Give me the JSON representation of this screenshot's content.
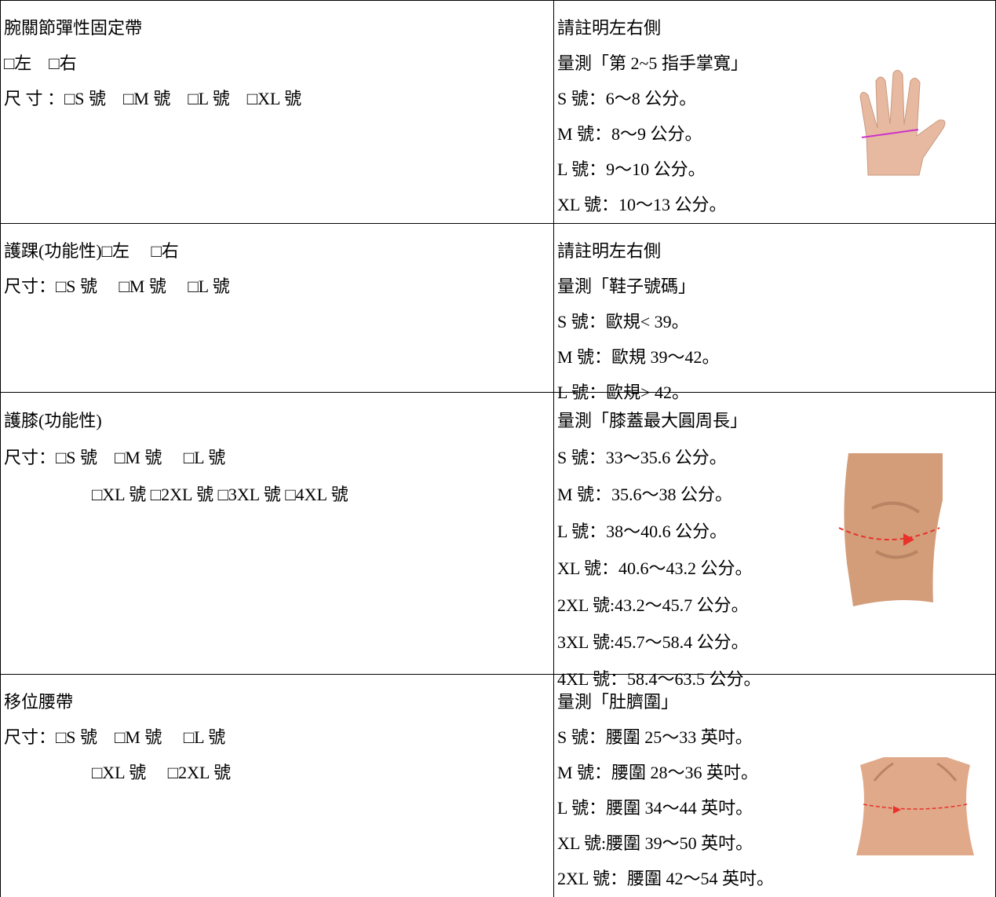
{
  "table": {
    "rows": [
      {
        "left": [
          "腕關節彈性固定帶",
          "□左　□右",
          "尺 寸 ：□S 號　□M 號　□L 號　□XL 號"
        ],
        "right": [
          "請註明左右側",
          "量測「第 2~5 指手掌寬」",
          "S 號：6～8 公分。",
          "M 號：8～9 公分。",
          "L 號：9～10 公分。",
          "XL 號：10～13 公分。"
        ]
      },
      {
        "left": [
          "護踝(功能性)□左　 □右",
          "尺寸：□S 號　 □M 號　 □L 號"
        ],
        "right": [
          "請註明左右側",
          "量測「鞋子號碼」",
          "S 號：歐規< 39。",
          "M 號：歐規 39～42。",
          "L 號：歐規> 42。"
        ]
      },
      {
        "left": [
          "護膝(功能性)",
          "尺寸：□S 號　□M 號　 □L 號",
          "□XL 號 □2XL 號 □3XL 號 □4XL 號"
        ],
        "right": [
          "量測「膝蓋最大圓周長」",
          "S 號：33～35.6 公分。",
          "M 號：35.6～38 公分。",
          "L 號：38～40.6 公分。",
          "XL 號：40.6～43.2 公分。",
          "2XL 號:43.2～45.7 公分。",
          "3XL 號:45.7～58.4 公分。",
          "4XL 號：58.4～63.5 公分。"
        ]
      },
      {
        "left": [
          "移位腰帶",
          "尺寸：□S 號　□M 號　 □L 號",
          "□XL 號　 □2XL 號"
        ],
        "right": [
          "量測「肚臍圍」",
          "S 號：腰圍 25～33 英吋。",
          "M 號：腰圍 28～36 英吋。",
          "L 號：腰圍 34～44 英吋。",
          "XL 號:腰圍 39～50 英吋。",
          "2XL 號：腰圍 42～54 英吋。"
        ]
      }
    ]
  }
}
